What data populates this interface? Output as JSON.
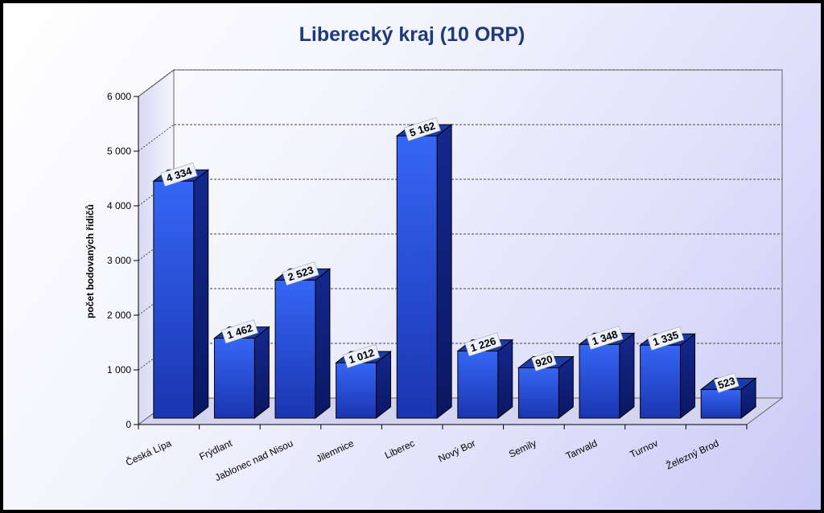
{
  "chart_data": {
    "type": "bar",
    "title": "Liberecký kraj (10 ORP)",
    "ylabel": "počet bodovaných řidičů",
    "xlabel": "",
    "ylim": [
      0,
      6000
    ],
    "y_ticks": [
      "0",
      "1 000",
      "2 000",
      "3 000",
      "4 000",
      "5 000",
      "6 000"
    ],
    "grid": true,
    "style": "3d",
    "colors": {
      "bar_front": "#2f5ef0",
      "bar_side": "#0c1f7e",
      "bar_top": "#1c3aa8",
      "title": "#1f3a7a"
    },
    "categories": [
      "Česká Lípa",
      "Frýdlant",
      "Jablonec nad Nisou",
      "Jilemnice",
      "Liberec",
      "Nový Bor",
      "Semily",
      "Tanvald",
      "Turnov",
      "Železný Brod"
    ],
    "values": [
      4334,
      1462,
      2523,
      1012,
      5162,
      1226,
      920,
      1348,
      1335,
      523
    ],
    "value_labels": [
      "4 334",
      "1 462",
      "2 523",
      "1 012",
      "5 162",
      "1 226",
      "920",
      "1 348",
      "1 335",
      "523"
    ]
  }
}
